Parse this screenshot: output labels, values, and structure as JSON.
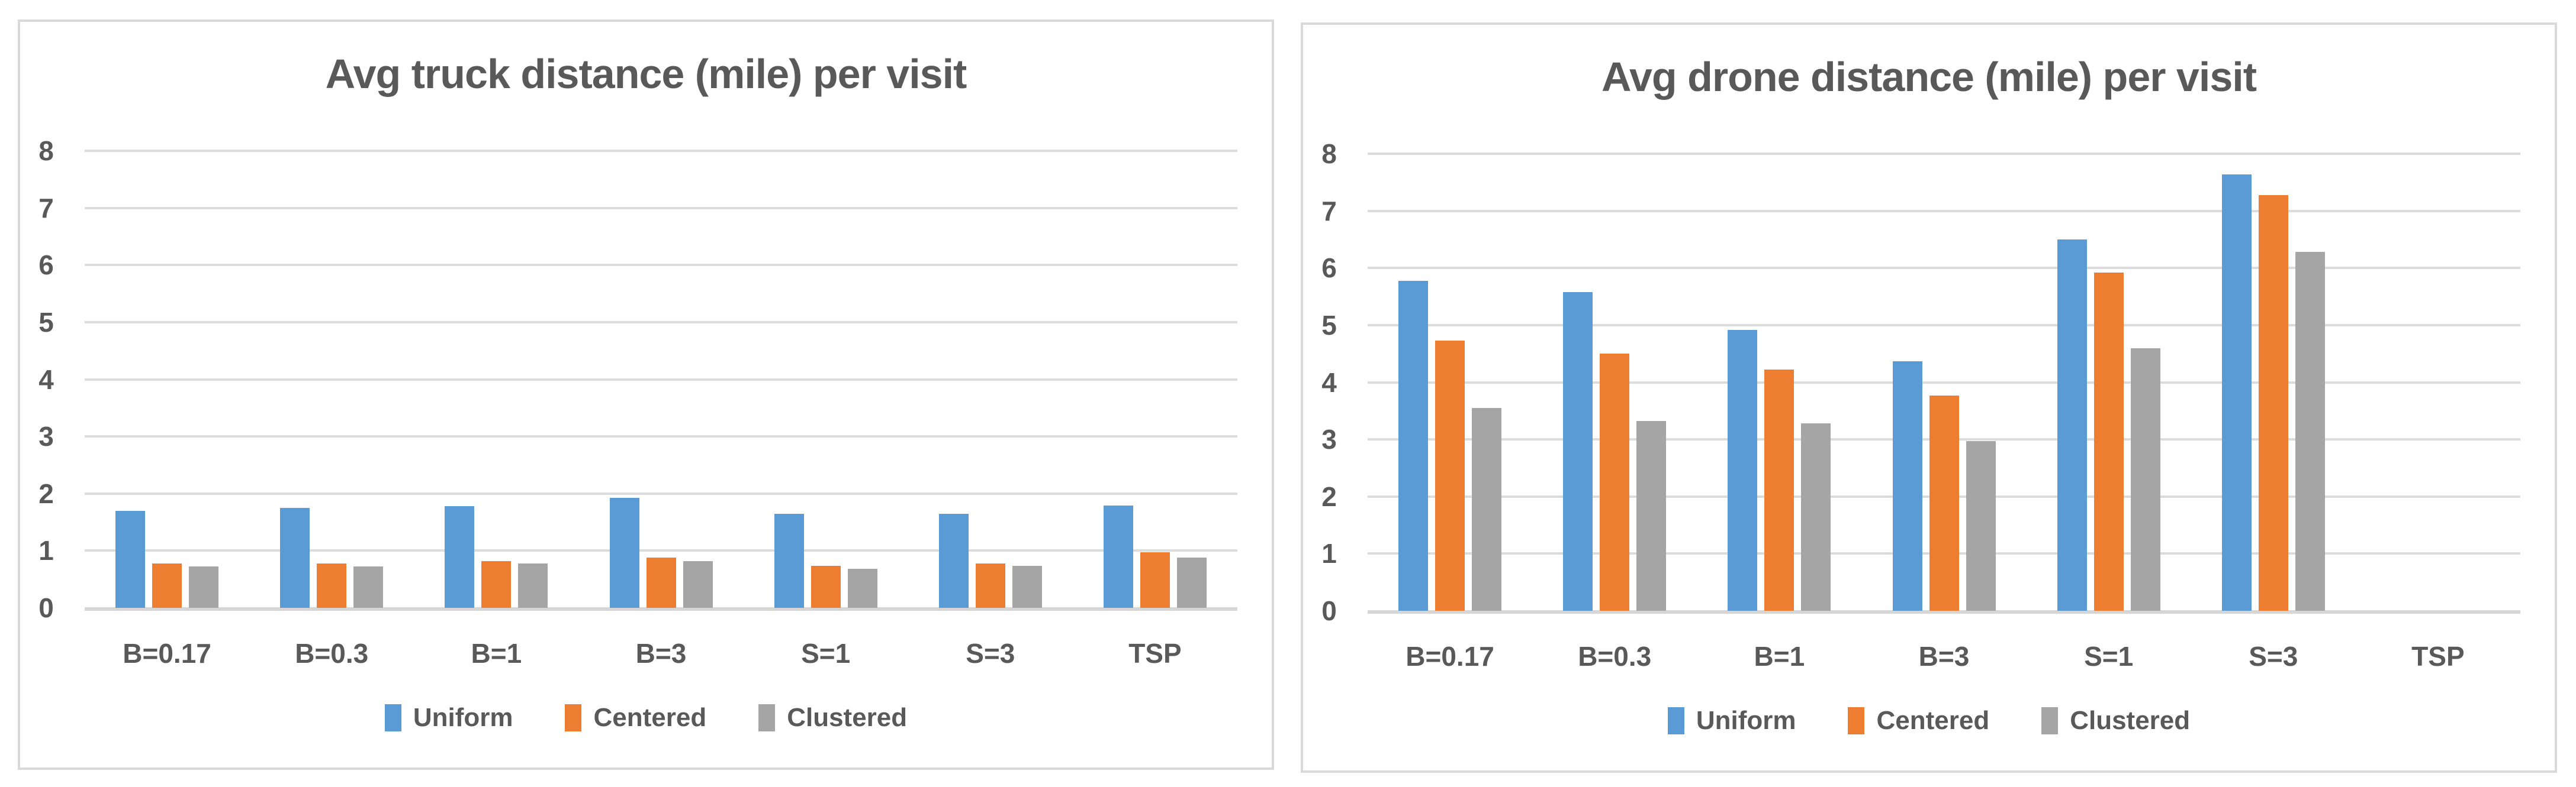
{
  "colors": {
    "uniform_blue": "#5B9BD5",
    "centered_orange": "#ED7D31",
    "clustered_gray": "#A5A5A5",
    "grid_line": "#DCDCDC",
    "panel_border": "#D9D9D9",
    "text": "#595959"
  },
  "chart_data": [
    {
      "type": "bar",
      "title": "Avg truck distance (mile) per visit",
      "categories": [
        "B=0.17",
        "B=0.3",
        "B=1",
        "B=3",
        "S=1",
        "S=3",
        "TSP"
      ],
      "series": [
        {
          "name": "Uniform",
          "color": "#5B9BD5",
          "values": [
            1.7,
            1.75,
            1.78,
            1.92,
            1.65,
            1.65,
            1.79
          ]
        },
        {
          "name": "Centered",
          "color": "#ED7D31",
          "values": [
            0.78,
            0.78,
            0.82,
            0.88,
            0.73,
            0.78,
            0.97
          ]
        },
        {
          "name": "Clustered",
          "color": "#A5A5A5",
          "values": [
            0.72,
            0.72,
            0.78,
            0.82,
            0.68,
            0.73,
            0.88
          ]
        }
      ],
      "xlabel": "",
      "ylabel": "",
      "ylim": [
        0,
        8
      ],
      "yticks": [
        0,
        1,
        2,
        3,
        4,
        5,
        6,
        7,
        8
      ],
      "grid": true,
      "legend_position": "bottom"
    },
    {
      "type": "bar",
      "title": "Avg drone distance (mile) per visit",
      "categories": [
        "B=0.17",
        "B=0.3",
        "B=1",
        "B=3",
        "S=1",
        "S=3",
        "TSP"
      ],
      "series": [
        {
          "name": "Uniform",
          "color": "#5B9BD5",
          "values": [
            5.78,
            5.58,
            4.92,
            4.37,
            6.5,
            7.64,
            0
          ]
        },
        {
          "name": "Centered",
          "color": "#ED7D31",
          "values": [
            4.73,
            4.5,
            4.22,
            3.77,
            5.92,
            7.28,
            0
          ]
        },
        {
          "name": "Clustered",
          "color": "#A5A5A5",
          "values": [
            3.55,
            3.32,
            3.28,
            2.97,
            4.6,
            6.28,
            0
          ]
        }
      ],
      "xlabel": "",
      "ylabel": "",
      "ylim": [
        0,
        8
      ],
      "yticks": [
        0,
        1,
        2,
        3,
        4,
        5,
        6,
        7,
        8
      ],
      "grid": true,
      "legend_position": "bottom"
    }
  ]
}
